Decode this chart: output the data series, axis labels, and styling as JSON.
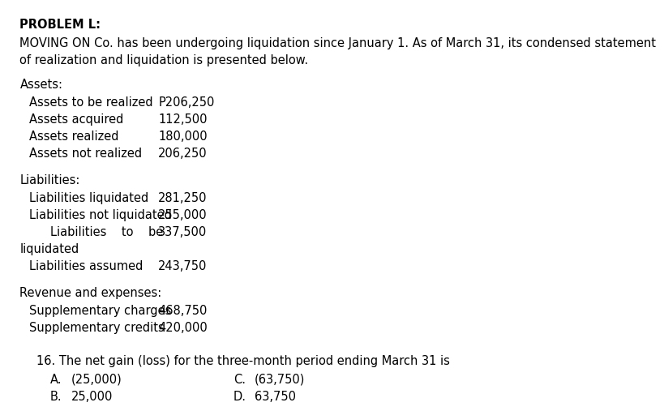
{
  "bg_color": "#ffffff",
  "title_underline": "PROBLEM L:",
  "intro_line1": "MOVING ON Co. has been undergoing liquidation since January 1. As of March 31, its condensed statement",
  "intro_line2": "of realization and liquidation is presented below.",
  "assets_header": "Assets:",
  "assets_rows": [
    {
      "label": "Assets to be realized",
      "value": "P206,250"
    },
    {
      "label": "Assets acquired",
      "value": "112,500"
    },
    {
      "label": "Assets realized",
      "value": "180,000"
    },
    {
      "label": "Assets not realized",
      "value": "206,250"
    }
  ],
  "liabilities_header": "Liabilities:",
  "liabilities_rows": [
    {
      "label": "Liabilities liquidated",
      "value": "281,250",
      "indent": 1
    },
    {
      "label": "Liabilities not liquidated",
      "value": "255,000",
      "indent": 1
    },
    {
      "label": "Liabilities    to    be",
      "value": "337,500",
      "indent": 2
    },
    {
      "label": "liquidated",
      "value": "",
      "indent": 0
    },
    {
      "label": "Liabilities assumed",
      "value": "243,750",
      "indent": 1
    }
  ],
  "revenue_header": "Revenue and expenses:",
  "revenue_rows": [
    {
      "label": "Supplementary charges",
      "value": "468,750"
    },
    {
      "label": "Supplementary credits",
      "value": "420,000"
    }
  ],
  "question_line": "16. The net gain (loss) for the three-month period ending March 31 is",
  "choices": [
    {
      "letter": "A.",
      "value": "(25,000)"
    },
    {
      "letter": "B.",
      "value": "25,000"
    },
    {
      "letter": "C.",
      "value": "(63,750)"
    },
    {
      "letter": "D.",
      "value": "63,750"
    }
  ],
  "font_size": 10.5,
  "font_family": "DejaVu Sans",
  "text_color": "#000000"
}
